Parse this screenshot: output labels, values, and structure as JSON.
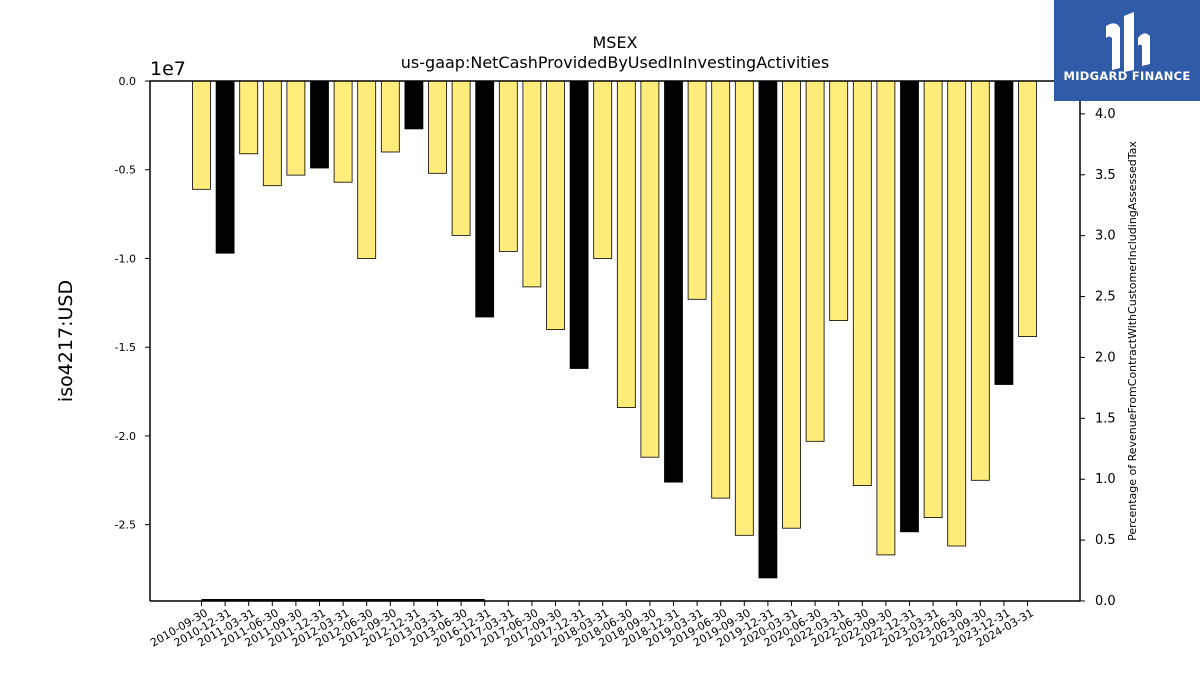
{
  "brand": {
    "name": "MIDGARD FINANCE",
    "bg_color": "#2f5ba8",
    "icon": "midgard-logo-icon"
  },
  "chart_data": {
    "type": "bar",
    "title": "MSEX",
    "subtitle": "us-gaap:NetCashProvidedByUsedInInvestingActivities",
    "ylabel": "iso4217:USD",
    "y_scale_label": "1e7",
    "y2label": "Percentage of RevenueFromContractWithCustomerIncludingAssessedTax",
    "ylim": [
      -29300000,
      0
    ],
    "y2lim": [
      0,
      4.27
    ],
    "yticks": [
      0,
      -5000000,
      -10000000,
      -15000000,
      -20000000,
      -25000000
    ],
    "ytick_labels": [
      "0.0",
      "-0.5",
      "-1.0",
      "-1.5",
      "-2.0",
      "-2.5"
    ],
    "y2ticks": [
      0,
      0.5,
      1.0,
      1.5,
      2.0,
      2.5,
      3.0,
      3.5,
      4.0
    ],
    "y2tick_labels": [
      "0.0",
      "0.5",
      "1.0",
      "1.5",
      "2.0",
      "2.5",
      "3.0",
      "3.5",
      "4.0"
    ],
    "categories": [
      "2010-09-30",
      "2010-12-31",
      "2011-03-31",
      "2011-06-30",
      "2011-09-30",
      "2011-12-31",
      "2012-03-31",
      "2012-06-30",
      "2012-09-30",
      "2012-12-31",
      "2013-03-31",
      "2013-06-30",
      "2016-12-31",
      "2017-03-31",
      "2017-06-30",
      "2017-09-30",
      "2017-12-31",
      "2018-03-31",
      "2018-06-30",
      "2018-09-30",
      "2018-12-31",
      "2019-03-31",
      "2019-06-30",
      "2019-09-30",
      "2019-12-31",
      "2020-03-31",
      "2020-06-30",
      "2022-03-31",
      "2022-06-30",
      "2022-09-30",
      "2022-12-31",
      "2023-03-31",
      "2023-06-30",
      "2023-09-30",
      "2023-12-31",
      "2024-03-31"
    ],
    "values": [
      -6100000,
      -9700000,
      -4100000,
      -5900000,
      -5300000,
      -4900000,
      -5700000,
      -10000000,
      -4000000,
      -2700000,
      -5200000,
      -8700000,
      -13300000,
      -9600000,
      -11600000,
      -14000000,
      -16200000,
      -10000000,
      -18400000,
      -21200000,
      -22600000,
      -12300000,
      -23500000,
      -25600000,
      -28000000,
      -25200000,
      -20300000,
      -13500000,
      -22800000,
      -26700000,
      -25400000,
      -24600000,
      -26200000,
      -22500000,
      -17100000,
      -14400000
    ],
    "highlight": [
      false,
      true,
      false,
      false,
      false,
      true,
      false,
      false,
      false,
      true,
      false,
      false,
      true,
      false,
      false,
      false,
      true,
      false,
      false,
      false,
      true,
      false,
      false,
      false,
      true,
      false,
      false,
      false,
      false,
      false,
      true,
      false,
      false,
      false,
      true,
      false
    ],
    "bar_color": "#ffec7a",
    "highlight_color": "#000000",
    "secondary_line": {
      "color": "#000000",
      "from_category": "2010-09-30",
      "to_category": "2016-12-31",
      "value": 0.0
    },
    "grid": false,
    "legend": "none"
  }
}
